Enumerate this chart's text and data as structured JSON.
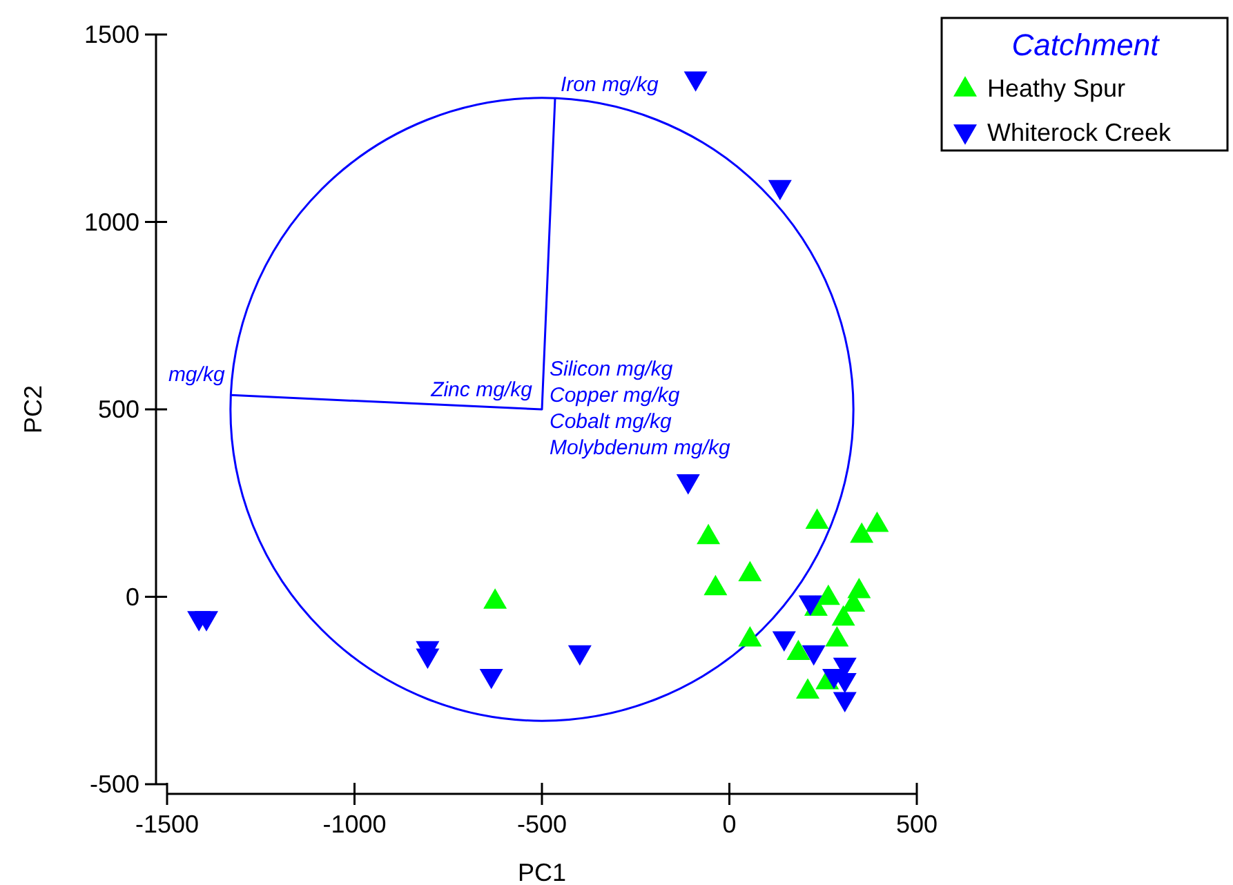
{
  "chart_data": {
    "type": "scatter",
    "xlabel": "PC1",
    "ylabel": "PC2",
    "legend_title": "Catchment",
    "legend": "top right",
    "grid": false,
    "xlim": [
      -1500,
      500
    ],
    "xticks": [
      -1500,
      -1000,
      -500,
      0,
      500
    ],
    "ylim": [
      -500,
      1500
    ],
    "yticks": [
      -500,
      0,
      500,
      1000,
      1500
    ],
    "series": [
      {
        "name": "Heathy Spur",
        "color": "#00ff00",
        "marker": "triangle",
        "x": [
          -625,
          -56,
          55,
          -37,
          55,
          234,
          353,
          394,
          264,
          346,
          331,
          231,
          304,
          287,
          184,
          261,
          209
        ],
        "values": [
          -10,
          162,
          63,
          26,
          -111,
          203,
          166,
          195,
          0,
          18,
          -18,
          -29,
          -55,
          -111,
          -147,
          -225,
          -250
        ]
      },
      {
        "name": "Whiterock Creek",
        "color": "#0000ff",
        "marker": "triangle-down",
        "x": [
          -90,
          135,
          -110,
          -1415,
          -1395,
          -805,
          -805,
          -635,
          -399,
          216,
          146,
          225,
          279,
          308,
          308,
          308
        ],
        "values": [
          1380,
          1090,
          305,
          -60,
          -60,
          -140,
          -160,
          -214,
          -151,
          -18,
          -114,
          -151,
          -214,
          -184,
          -225,
          -276
        ]
      },
      {
        "type": "line",
        "color": "#0000ff",
        "marker": "none",
        "x": [
          -1330,
          -500,
          -465
        ],
        "values": [
          538,
          500,
          1330
        ]
      }
    ],
    "annotations": [
      {
        "text": "Iron mg/kg",
        "x": -465,
        "y": 1330
      },
      {
        "text": "mg/kg",
        "x": -1335,
        "y": 560
      },
      {
        "text": "Zinc mg/kg",
        "x": -515,
        "y": 520
      },
      "Silicon mg/kg",
      "Copper mg/kg",
      "Cobalt mg/kg",
      "Molybdenum mg/kg"
    ]
  }
}
